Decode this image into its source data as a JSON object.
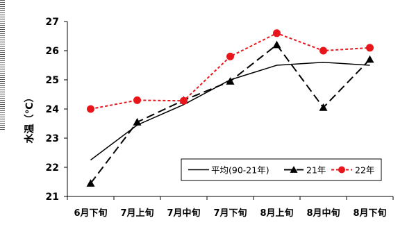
{
  "chart_data": {
    "type": "line",
    "title": "",
    "xlabel": "",
    "ylabel": "水温（℃）",
    "ylim": [
      21,
      27
    ],
    "yticks": [
      "21",
      "22",
      "23",
      "24",
      "25",
      "26",
      "27"
    ],
    "grid": false,
    "legend_position": "bottom-right",
    "categories": [
      "6月下旬",
      "7月上旬",
      "7月中旬",
      "7月下旬",
      "8月上旬",
      "8月中旬",
      "8月下旬"
    ],
    "series": [
      {
        "name": "平均(90-21年)",
        "values": [
          22.25,
          23.45,
          24.15,
          25.0,
          25.5,
          25.6,
          25.5
        ],
        "color": "#000000",
        "dash": "solid",
        "marker": "none"
      },
      {
        "name": "21年",
        "values": [
          21.45,
          23.55,
          24.3,
          24.95,
          26.2,
          24.05,
          25.7
        ],
        "color": "#000000",
        "dash": "long-dash",
        "marker": "triangle"
      },
      {
        "name": "22年",
        "values": [
          24.0,
          24.3,
          24.28,
          25.8,
          26.6,
          26.0,
          26.1
        ],
        "color": "#e8161b",
        "dash": "short-dash",
        "marker": "circle"
      }
    ]
  }
}
